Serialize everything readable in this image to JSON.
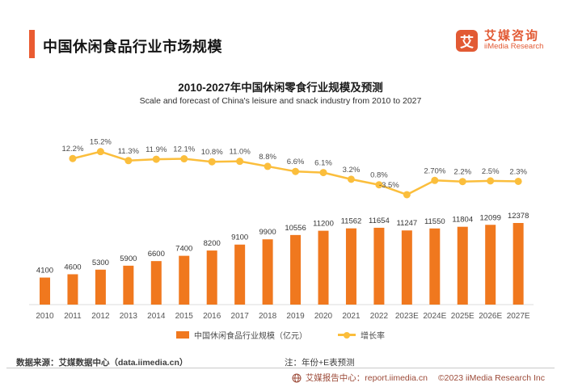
{
  "page": {
    "title": "中国休闲食品行业市场规模"
  },
  "brand": {
    "logo_char": "艾",
    "name_cn": "艾媒咨询",
    "name_en": "iiMedia Research"
  },
  "chart_data": {
    "type": "bar",
    "title": "2010-2027年中国休闲零食行业规模及预测",
    "subtitle": "Scale and forecast of China's leisure and snack industry from 2010 to 2027",
    "categories": [
      "2010",
      "2011",
      "2012",
      "2013",
      "2014",
      "2015",
      "2016",
      "2017",
      "2018",
      "2019",
      "2020",
      "2021",
      "2022",
      "2023E",
      "2024E",
      "2025E",
      "2026E",
      "2027E"
    ],
    "series": [
      {
        "name": "中国休闲食品行业规模（亿元）",
        "type": "bar",
        "start_index": 0,
        "values": [
          4100,
          4600,
          5300,
          5900,
          6600,
          7400,
          8200,
          9100,
          9900,
          10556,
          11200,
          11562,
          11654,
          11247,
          11550,
          11804,
          12099,
          12378
        ]
      },
      {
        "name": "增长率",
        "type": "line",
        "start_index": 1,
        "values": [
          12.2,
          15.2,
          11.3,
          11.9,
          12.1,
          10.8,
          11.0,
          8.8,
          6.6,
          6.1,
          3.2,
          0.8,
          -3.5,
          2.7,
          2.2,
          2.5,
          2.3
        ],
        "labels": [
          "12.2%",
          "15.2%",
          "11.3%",
          "11.9%",
          "12.1%",
          "10.8%",
          "11.0%",
          "8.8%",
          "6.6%",
          "6.1%",
          "3.2%",
          "0.8%",
          "-3.5%",
          "2.70%",
          "2.2%",
          "2.5%",
          "2.3%"
        ]
      }
    ],
    "bar_color": "#F0781E",
    "line_color": "#FBBE3C",
    "grid": false,
    "legend_position": "bottom",
    "ylim_bar": [
      0,
      13000
    ],
    "ylim_line_pct": [
      -6,
      17
    ]
  },
  "legend": {
    "bar_label": "中国休闲食品行业规模（亿元）",
    "line_label": "增长率"
  },
  "notes": {
    "source": "数据来源：艾媒数据中心（data.iimedia.cn）",
    "prediction": "注：年份+E表预测"
  },
  "footer": {
    "report_center": "艾媒报告中心：report.iimedia.cn",
    "copyright": "©2023  iiMedia Research  Inc"
  },
  "colors": {
    "accent": "#EA5B31",
    "brand": "#E25A34",
    "bar": "#F0781E",
    "line": "#FBBE3C",
    "footer_text": "#9C4A38"
  }
}
